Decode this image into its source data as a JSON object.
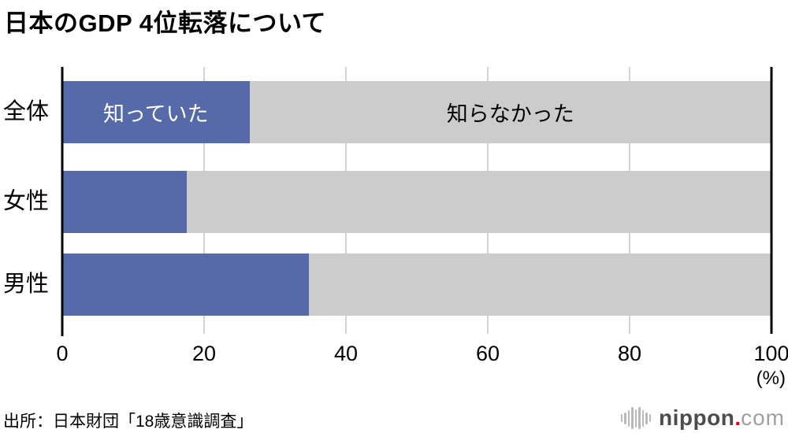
{
  "title": "日本のGDP 4位転落について",
  "chart_data": {
    "type": "bar",
    "orientation": "horizontal",
    "stacked": true,
    "title": "日本のGDP 4位転落について",
    "categories": [
      "全体",
      "女性",
      "男性"
    ],
    "series": [
      {
        "name": "知っていた",
        "color": "#5669a8",
        "label_color": "#ffffff",
        "values": [
          26.4,
          17.6,
          34.8
        ]
      },
      {
        "name": "知らなかった",
        "color": "#cccccc",
        "label_color": "#000000",
        "values": [
          73.6,
          82.4,
          65.2
        ]
      }
    ],
    "xlim": [
      0,
      100
    ],
    "x_ticks": [
      "0",
      "20",
      "40",
      "60",
      "80",
      "100"
    ],
    "x_unit": "(%)",
    "grid": true,
    "legend_position": "labels-inside-first-bar"
  },
  "source": "出所：日本財団「18歳意識調査」",
  "logo": {
    "name": "nippon",
    "dot": ".",
    "tld": "com"
  },
  "colors": {
    "knew": "#5669a8",
    "did_not_know": "#cccccc",
    "gridline": "#d4d4d4",
    "axis": "#000000",
    "logo_name": "#4d4c4c",
    "logo_dot": "#e60012",
    "logo_tld": "#9fa0a0"
  }
}
